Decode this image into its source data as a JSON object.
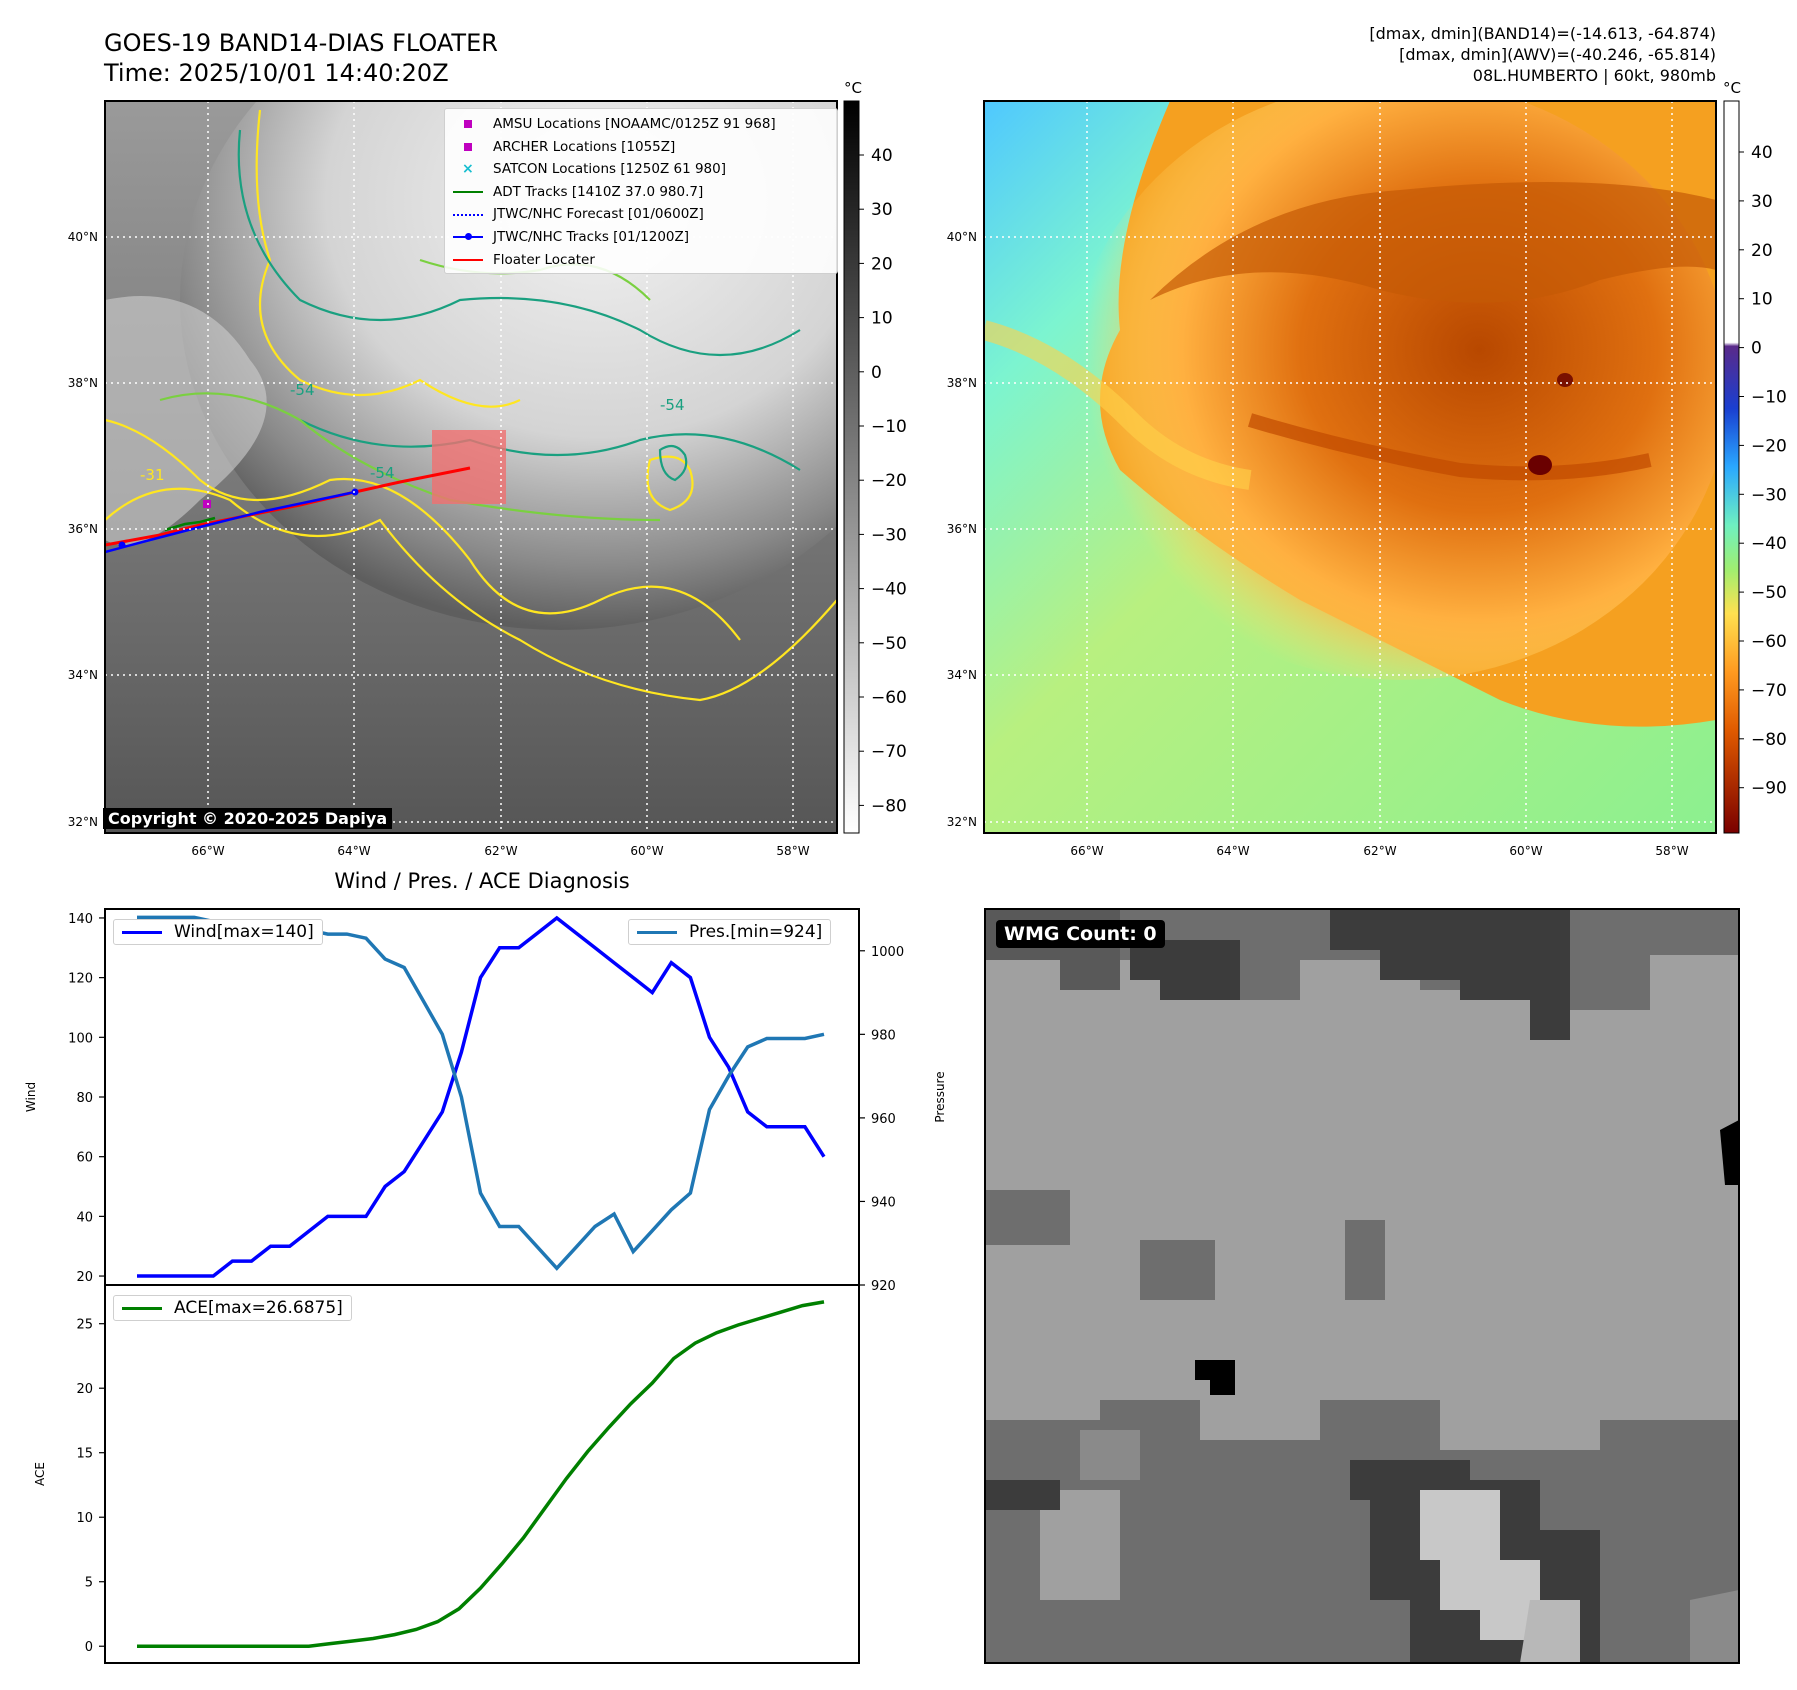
{
  "header": {
    "title_line1": "GOES-19 BAND14-DIAS FLOATER",
    "title_line2": "Time: 2025/10/01 14:40:20Z",
    "info_line1": "[dmax, dmin](BAND14)=(-14.613, -64.874)",
    "info_line2": "[dmax, dmin](AWV)=(-40.246, -65.814)",
    "info_line3": "08L.HUMBERTO | 60kt, 980mb"
  },
  "maps": {
    "lat_labels": [
      "40°N",
      "38°N",
      "36°N",
      "34°N",
      "32°N"
    ],
    "lon_labels": [
      "66°W",
      "64°W",
      "62°W",
      "60°W",
      "58°W"
    ],
    "copyright": "Copyright © 2020-2025 Dapiya",
    "contour_labels": [
      "-31",
      "-54"
    ],
    "colorbar_unit": "°C",
    "ir_colorbar_ticks": [
      "40",
      "30",
      "20",
      "10",
      "0",
      "−10",
      "−20",
      "−30",
      "−40",
      "−50",
      "−60",
      "−70",
      "−80"
    ],
    "awv_colorbar_ticks": [
      "40",
      "30",
      "20",
      "10",
      "0",
      "−10",
      "−20",
      "−30",
      "−40",
      "−50",
      "−60",
      "−70",
      "−80",
      "−90"
    ]
  },
  "legend": {
    "items": [
      {
        "label": "AMSU Locations [NOAAMC/0125Z 91 968]",
        "color": "#bf00bf",
        "kind": "square"
      },
      {
        "label": "ARCHER Locations [1055Z]",
        "color": "#bf00bf",
        "kind": "square"
      },
      {
        "label": "SATCON Locations [1250Z 61 980]",
        "color": "#17becf",
        "kind": "cross"
      },
      {
        "label": "ADT Tracks [1410Z 37.0 980.7]",
        "color": "#008000",
        "kind": "line"
      },
      {
        "label": "JTWC/NHC Forecast [01/0600Z]",
        "color": "#0000ff",
        "kind": "dotted"
      },
      {
        "label": "JTWC/NHC Tracks [01/1200Z]",
        "color": "#0000ff",
        "kind": "line-dot"
      },
      {
        "label": "Floater Locater",
        "color": "#ff0000",
        "kind": "line"
      }
    ]
  },
  "wmg": {
    "label": "WMG Count: 0"
  },
  "colors": {
    "wind": "#0000ff",
    "pressure": "#1f77b4",
    "ace": "#008000"
  },
  "chart_data": [
    {
      "type": "line",
      "title": "Wind / Pres. / ACE Diagnosis",
      "ylabel": "Wind",
      "ylabel_right": "Pressure",
      "ylim": [
        17,
        143
      ],
      "ylim_right": [
        920,
        1010
      ],
      "yticks": [
        20,
        40,
        60,
        80,
        100,
        120,
        140
      ],
      "yticks_right": [
        920,
        940,
        960,
        980,
        1000
      ],
      "series": [
        {
          "name": "Wind[max=140]",
          "axis": "left",
          "values": [
            20,
            20,
            20,
            20,
            20,
            25,
            25,
            30,
            30,
            35,
            40,
            40,
            40,
            50,
            55,
            65,
            75,
            95,
            120,
            130,
            130,
            135,
            140,
            135,
            130,
            125,
            120,
            115,
            125,
            120,
            100,
            90,
            75,
            70,
            70,
            70,
            60
          ]
        },
        {
          "name": "Pres.[min=924]",
          "axis": "right",
          "values": [
            1008,
            1008,
            1008,
            1008,
            1007,
            1007,
            1007,
            1007,
            1006,
            1005,
            1004,
            1004,
            1003,
            998,
            996,
            988,
            980,
            965,
            942,
            934,
            934,
            929,
            924,
            929,
            934,
            937,
            928,
            933,
            938,
            942,
            962,
            970,
            977,
            979,
            979,
            979,
            980
          ]
        }
      ]
    },
    {
      "type": "line",
      "ylabel": "ACE",
      "ylim": [
        -1.3,
        28
      ],
      "yticks": [
        0,
        5,
        10,
        15,
        20,
        25
      ],
      "series": [
        {
          "name": "ACE[max=26.6875]",
          "values": [
            0,
            0,
            0,
            0,
            0,
            0,
            0,
            0,
            0,
            0.2,
            0.4,
            0.6,
            0.9,
            1.3,
            1.9,
            2.9,
            4.5,
            6.4,
            8.4,
            10.7,
            13.0,
            15.1,
            17.0,
            18.8,
            20.4,
            22.3,
            23.5,
            24.3,
            24.9,
            25.4,
            25.9,
            26.4,
            26.6875
          ]
        }
      ]
    }
  ]
}
